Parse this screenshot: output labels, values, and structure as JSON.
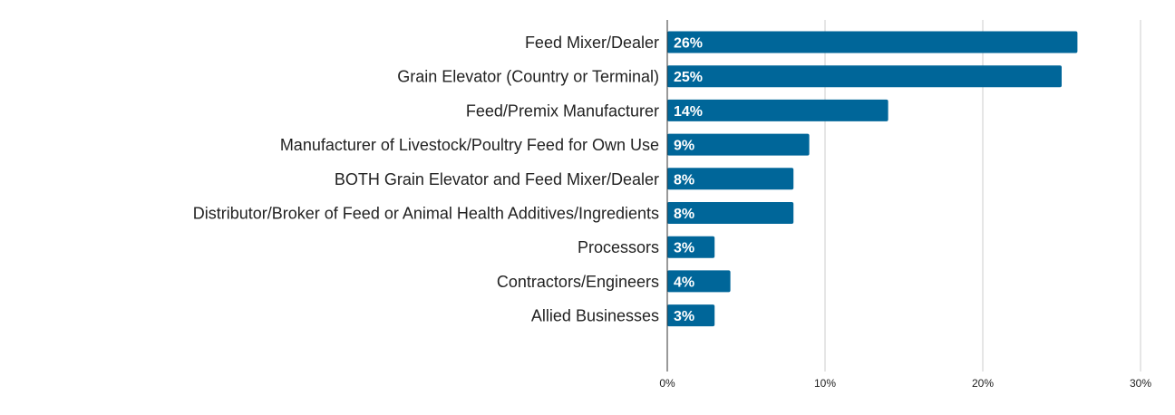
{
  "chart_data": {
    "type": "bar",
    "orientation": "horizontal",
    "title": "",
    "xlabel": "",
    "ylabel": "",
    "categories": [
      "Feed Mixer/Dealer",
      "Grain Elevator (Country or Terminal)",
      "Feed/Premix Manufacturer",
      "Manufacturer of Livestock/Poultry Feed for Own Use",
      "BOTH Grain Elevator and Feed Mixer/Dealer",
      "Distributor/Broker of Feed or Animal Health Additives/Ingredients",
      "Processors",
      "Contractors/Engineers",
      "Allied Businesses"
    ],
    "values": [
      26,
      25,
      14,
      9,
      8,
      8,
      3,
      4,
      3
    ],
    "data_labels": [
      "26%",
      "25%",
      "14%",
      "9%",
      "8%",
      "8%",
      "3%",
      "4%",
      "3%"
    ],
    "xlim": [
      0,
      30
    ],
    "ticks": [
      0,
      10,
      20,
      30
    ],
    "tick_labels": [
      "0%",
      "10%",
      "20%",
      "30%"
    ],
    "grid": true,
    "legend": "none",
    "bar_color": "#006699"
  }
}
